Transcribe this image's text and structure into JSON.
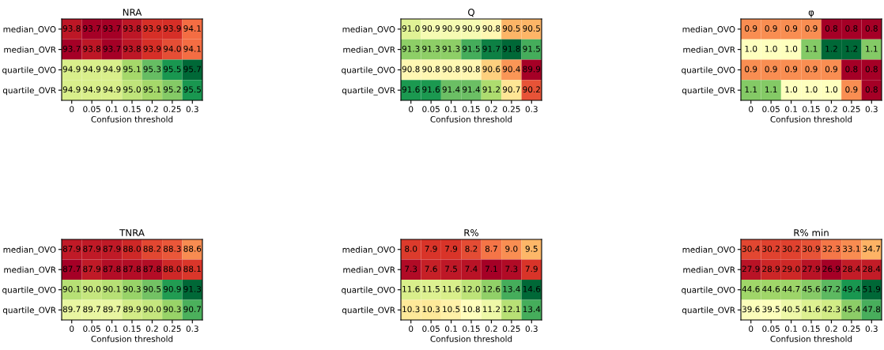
{
  "chart_data": [
    {
      "type": "heatmap",
      "title": "NRA",
      "xlabel": "Confusion threshold",
      "categories": [
        "0",
        "0.05",
        "0.1",
        "0.15",
        "0.2",
        "0.25",
        "0.3"
      ],
      "y_categories": [
        "median_OVO",
        "median_OVR",
        "quartile_OVO",
        "quartile_OVR"
      ],
      "data_labels": true,
      "cells": [
        [
          93.8,
          93.7,
          93.7,
          93.8,
          93.9,
          93.9,
          94.1
        ],
        [
          93.7,
          93.8,
          93.7,
          93.8,
          93.9,
          94.0,
          94.1
        ],
        [
          94.9,
          94.9,
          94.9,
          95.1,
          95.3,
          95.5,
          95.7
        ],
        [
          94.9,
          94.9,
          94.9,
          95.0,
          95.1,
          95.2,
          95.5
        ]
      ],
      "cell_labels": [
        [
          "93.8",
          "93.7",
          "93.7",
          "93.8",
          "93.9",
          "93.9",
          "94.1"
        ],
        [
          "93.7",
          "93.8",
          "93.7",
          "93.8",
          "93.9",
          "94.0",
          "94.1"
        ],
        [
          "94.9",
          "94.9",
          "94.9",
          "95.1",
          "95.3",
          "95.5",
          "95.7"
        ],
        [
          "94.9",
          "94.9",
          "94.9",
          "95.0",
          "95.1",
          "95.2",
          "95.5"
        ]
      ]
    },
    {
      "type": "heatmap",
      "title": "Q",
      "xlabel": "Confusion threshold",
      "categories": [
        "0",
        "0.05",
        "0.1",
        "0.15",
        "0.2",
        "0.25",
        "0.3"
      ],
      "y_categories": [
        "median_OVO",
        "median_OVR",
        "quartile_OVO",
        "quartile_OVR"
      ],
      "data_labels": true,
      "cells": [
        [
          91.0,
          90.9,
          90.9,
          90.9,
          90.8,
          90.5,
          90.5
        ],
        [
          91.3,
          91.3,
          91.3,
          91.5,
          91.7,
          91.8,
          91.5
        ],
        [
          90.8,
          90.8,
          90.8,
          90.8,
          90.6,
          90.4,
          89.9
        ],
        [
          91.6,
          91.6,
          91.4,
          91.4,
          91.2,
          90.7,
          90.2
        ]
      ],
      "cell_labels": [
        [
          "91.0",
          "90.9",
          "90.9",
          "90.9",
          "90.8",
          "90.5",
          "90.5"
        ],
        [
          "91.3",
          "91.3",
          "91.3",
          "91.5",
          "91.7",
          "91.8",
          "91.5"
        ],
        [
          "90.8",
          "90.8",
          "90.8",
          "90.8",
          "90.6",
          "90.4",
          "89.9"
        ],
        [
          "91.6",
          "91.6",
          "91.4",
          "91.4",
          "91.2",
          "90.7",
          "90.2"
        ]
      ]
    },
    {
      "type": "heatmap",
      "title": "φ",
      "xlabel": "Confusion threshold",
      "categories": [
        "0",
        "0.05",
        "0.1",
        "0.15",
        "0.2",
        "0.25",
        "0.3"
      ],
      "y_categories": [
        "median_OVO",
        "median_OVR",
        "quartile_OVO",
        "quartile_OVR"
      ],
      "data_labels": true,
      "cells": [
        [
          0.9,
          0.9,
          0.9,
          0.9,
          0.8,
          0.8,
          0.8
        ],
        [
          1.0,
          1.0,
          1.0,
          1.1,
          1.2,
          1.2,
          1.1
        ],
        [
          0.9,
          0.9,
          0.9,
          0.9,
          0.9,
          0.8,
          0.8
        ],
        [
          1.1,
          1.1,
          1.0,
          1.0,
          1.0,
          0.9,
          0.8
        ]
      ],
      "cell_labels": [
        [
          "0.9",
          "0.9",
          "0.9",
          "0.9",
          "0.8",
          "0.8",
          "0.8"
        ],
        [
          "1.0",
          "1.0",
          "1.0",
          "1.1",
          "1.2",
          "1.2",
          "1.1"
        ],
        [
          "0.9",
          "0.9",
          "0.9",
          "0.9",
          "0.9",
          "0.8",
          "0.8"
        ],
        [
          "1.1",
          "1.1",
          "1.0",
          "1.0",
          "1.0",
          "0.9",
          "0.8"
        ]
      ]
    },
    {
      "type": "heatmap",
      "title": "TNRA",
      "xlabel": "Confusion threshold",
      "categories": [
        "0",
        "0.05",
        "0.1",
        "0.15",
        "0.2",
        "0.25",
        "0.3"
      ],
      "y_categories": [
        "median_OVO",
        "median_OVR",
        "quartile_OVO",
        "quartile_OVR"
      ],
      "data_labels": true,
      "cells": [
        [
          87.9,
          87.9,
          87.9,
          88.0,
          88.2,
          88.3,
          88.6
        ],
        [
          87.7,
          87.9,
          87.8,
          87.8,
          87.8,
          88.0,
          88.1
        ],
        [
          90.1,
          90.0,
          90.1,
          90.3,
          90.5,
          90.9,
          91.3
        ],
        [
          89.7,
          89.7,
          89.7,
          89.9,
          90.0,
          90.3,
          90.7
        ]
      ],
      "cell_labels": [
        [
          "87.9",
          "87.9",
          "87.9",
          "88.0",
          "88.2",
          "88.3",
          "88.6"
        ],
        [
          "87.7",
          "87.9",
          "87.8",
          "87.8",
          "87.8",
          "88.0",
          "88.1"
        ],
        [
          "90.1",
          "90.0",
          "90.1",
          "90.3",
          "90.5",
          "90.9",
          "91.3"
        ],
        [
          "89.7",
          "89.7",
          "89.7",
          "89.9",
          "90.0",
          "90.3",
          "90.7"
        ]
      ]
    },
    {
      "type": "heatmap",
      "title": "R%",
      "xlabel": "Confusion threshold",
      "categories": [
        "0",
        "0.05",
        "0.1",
        "0.15",
        "0.2",
        "0.25",
        "0.3"
      ],
      "y_categories": [
        "median_OVO",
        "median_OVR",
        "quartile_OVO",
        "quartile_OVR"
      ],
      "data_labels": true,
      "cells": [
        [
          8.0,
          7.9,
          7.9,
          8.2,
          8.7,
          9.0,
          9.5
        ],
        [
          7.3,
          7.6,
          7.5,
          7.4,
          7.1,
          7.3,
          7.9
        ],
        [
          11.6,
          11.5,
          11.6,
          12.0,
          12.6,
          13.4,
          14.6
        ],
        [
          10.3,
          10.3,
          10.5,
          10.8,
          11.2,
          12.1,
          13.4
        ]
      ],
      "cell_labels": [
        [
          "8.0",
          "7.9",
          "7.9",
          "8.2",
          "8.7",
          "9.0",
          "9.5"
        ],
        [
          "7.3",
          "7.6",
          "7.5",
          "7.4",
          "7.1",
          "7.3",
          "7.9"
        ],
        [
          "11.6",
          "11.5",
          "11.6",
          "12.0",
          "12.6",
          "13.4",
          "14.6"
        ],
        [
          "10.3",
          "10.3",
          "10.5",
          "10.8",
          "11.2",
          "12.1",
          "13.4"
        ]
      ]
    },
    {
      "type": "heatmap",
      "title": "R% min",
      "xlabel": "Confusion threshold",
      "categories": [
        "0",
        "0.05",
        "0.1",
        "0.15",
        "0.2",
        "0.25",
        "0.3"
      ],
      "y_categories": [
        "median_OVO",
        "median_OVR",
        "quartile_OVO",
        "quartile_OVR"
      ],
      "data_labels": true,
      "cells": [
        [
          30.4,
          30.2,
          30.2,
          30.9,
          32.3,
          33.1,
          34.7
        ],
        [
          27.9,
          28.9,
          29.0,
          27.9,
          26.9,
          28.4,
          28.4
        ],
        [
          44.6,
          44.6,
          44.7,
          45.6,
          47.2,
          49.4,
          51.9
        ],
        [
          39.6,
          39.5,
          40.5,
          41.6,
          42.3,
          45.4,
          47.8
        ]
      ],
      "cell_labels": [
        [
          "30.4",
          "30.2",
          "30.2",
          "30.9",
          "32.3",
          "33.1",
          "34.7"
        ],
        [
          "27.9",
          "28.9",
          "29.0",
          "27.9",
          "26.9",
          "28.4",
          "28.4"
        ],
        [
          "44.6",
          "44.6",
          "44.7",
          "45.6",
          "47.2",
          "49.4",
          "51.9"
        ],
        [
          "39.6",
          "39.5",
          "40.5",
          "41.6",
          "42.3",
          "45.4",
          "47.8"
        ]
      ]
    }
  ]
}
